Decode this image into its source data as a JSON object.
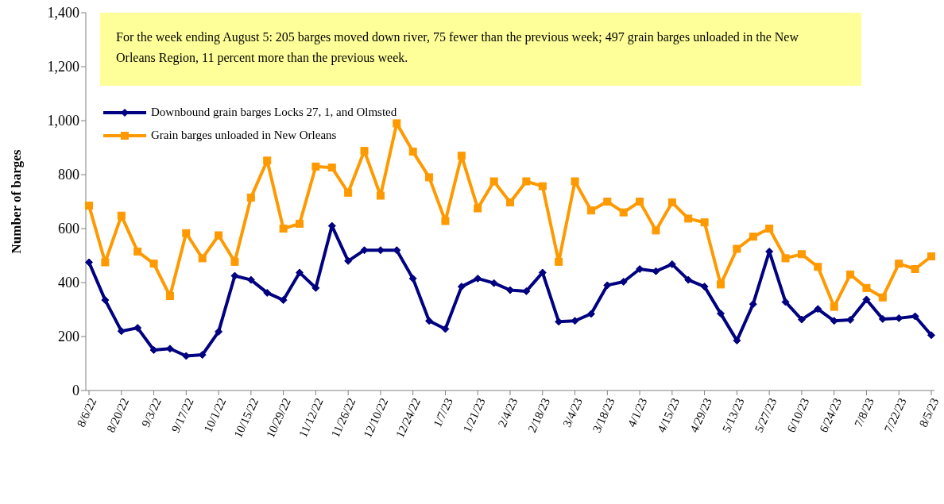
{
  "chart_data": {
    "type": "line",
    "ylabel": "Number  of  barges",
    "annotations": [
      "For the week ending August 5: 205 barges moved down river, 75 fewer than the previous week; 497 grain barges unloaded in the New Orleans Region,  11 percent more than the previous week."
    ],
    "categories": [
      "8/6/22",
      null,
      "8/20/22",
      null,
      "9/3/22",
      null,
      "9/17/22",
      null,
      "10/1/22",
      null,
      "10/15/22",
      null,
      "10/29/22",
      null,
      "11/12/22",
      null,
      "11/26/22",
      null,
      "12/10/22",
      null,
      "12/24/22",
      null,
      "1/7/23",
      null,
      "1/21/23",
      null,
      "2/4/23",
      null,
      "2/18/23",
      null,
      "3/4/23",
      null,
      "3/18/23",
      null,
      "4/1/23",
      null,
      "4/15/23",
      null,
      "4/29/23",
      null,
      "5/13/23",
      null,
      "5/27/23",
      null,
      "6/10/23",
      null,
      "6/24/23",
      null,
      "7/8/23",
      null,
      "7/22/23",
      null,
      "8/5/23"
    ],
    "series": [
      {
        "name": "Downbound grain barges Locks 27, 1, and Olmsted",
        "color": "#000080",
        "marker": "diamond",
        "values": [
          475,
          335,
          220,
          232,
          150,
          155,
          128,
          132,
          218,
          425,
          410,
          362,
          335,
          437,
          380,
          610,
          480,
          520,
          520,
          520,
          415,
          258,
          228,
          385,
          415,
          398,
          372,
          368,
          437,
          255,
          258,
          284,
          390,
          403,
          450,
          442,
          468,
          410,
          385,
          285,
          185,
          320,
          515,
          328,
          263,
          302,
          258,
          262,
          337,
          265,
          268,
          275,
          205
        ]
      },
      {
        "name": "Grain barges unloaded in New Orleans",
        "color": "#ff9900",
        "marker": "square",
        "values": [
          685,
          475,
          648,
          515,
          470,
          350,
          583,
          490,
          575,
          477,
          715,
          852,
          600,
          618,
          830,
          826,
          733,
          888,
          722,
          990,
          885,
          790,
          628,
          870,
          675,
          775,
          697,
          775,
          757,
          477,
          775,
          667,
          700,
          660,
          700,
          593,
          697,
          637,
          623,
          393,
          525,
          570,
          600,
          490,
          505,
          458,
          310,
          430,
          380,
          345,
          470,
          450,
          497
        ]
      }
    ],
    "ylim": [
      0,
      1400
    ],
    "yticks": [
      0,
      200,
      400,
      600,
      800,
      {
        "value": 1000,
        "label": "1,000"
      },
      {
        "value": 1200,
        "label": "1,200"
      },
      {
        "value": 1400,
        "label": "1,400"
      }
    ],
    "legend": "top left",
    "line_style": "solid"
  }
}
